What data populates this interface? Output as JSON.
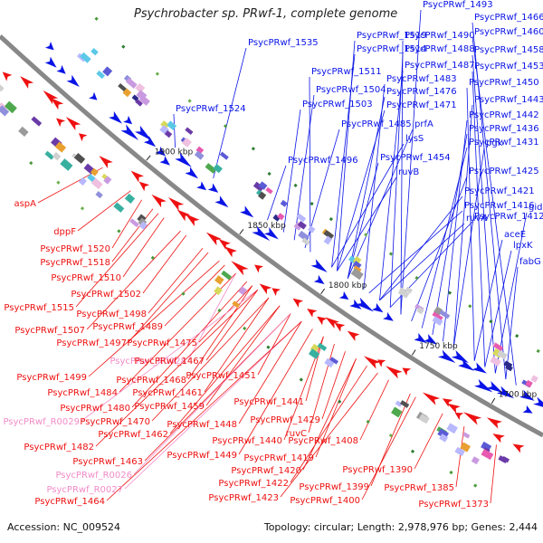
{
  "title": "Psychrobacter sp. PRwf-1, complete genome",
  "footer": {
    "accession": "Accession: NC_009524",
    "summary": "Topology: circular; Length: 2,978,976 bp; Genes: 2,444"
  },
  "colors": {
    "plus_strand": "#0a14e6",
    "minus_strand": "#ee1111",
    "rna_gene": "#f28cc8",
    "backbone": "#888888",
    "tick": "#222222"
  },
  "ticks": [
    "1900 kbp",
    "1850 kbp",
    "1800 kbp",
    "1750 kbp",
    "1700 kbp"
  ],
  "labels_plus": [
    "PsycPRwf_1493",
    "PsycPRwf_1466",
    "PsycPRwf_1460",
    "PsycPRwf_1519",
    "PsycPRwf_1490",
    "PsycPRwf_1535",
    "PsycPRwf_1514",
    "PsycPRwf_1488",
    "PsycPRwf_1458",
    "PsycPRwf_1487",
    "PsycPRwf_1453",
    "PsycPRwf_1511",
    "PsycPRwf_1483",
    "PsycPRwf_1450",
    "PsycPRwf_1504",
    "PsycPRwf_1476",
    "PsycPRwf_1443",
    "PsycPRwf_1524",
    "PsycPRwf_1503",
    "PsycPRwf_1471",
    "PsycPRwf_1442",
    "PsycPRwf_1485",
    "prfA",
    "PsycPRwf_1436",
    "lysS",
    "pgk",
    "PsycPRwf_1431",
    "PsycPRwf_1496",
    "PsycPRwf_1454",
    "ruvB",
    "PsycPRwf_1425",
    "PsycPRwf_1421",
    "ruvA",
    "PsycPRwf_1416",
    "PsycPRwf_1412",
    "gidB",
    "aceE",
    "lpxK",
    "fabG"
  ],
  "labels_minus": [
    "aspA",
    "dppF",
    "PsycPRwf_1520",
    "PsycPRwf_1518",
    "PsycPRwf_1510",
    "PsycPRwf_1502",
    "PsycPRwf_1515",
    "PsycPRwf_1498",
    "PsycPRwf_1507",
    "PsycPRwf_1489",
    "PsycPRwf_1497",
    "PsycPRwf_1475",
    "PsycPRwf_R0028",
    "PsycPRwf_1467",
    "PsycPRwf_1499",
    "PsycPRwf_1468",
    "PsycPRwf_1451",
    "PsycPRwf_1484",
    "PsycPRwf_1461",
    "PsycPRwf_1480",
    "PsycPRwf_1459",
    "PsycPRwf_1441",
    "PsycPRwf_R0029",
    "PsycPRwf_1470",
    "PsycPRwf_1448",
    "PsycPRwf_1429",
    "PsycPRwf_1462",
    "PsycPRwf_1440",
    "ruvC",
    "PsycPRwf_1482",
    "PsycPRwf_1449",
    "PsycPRwf_1419",
    "PsycPRwf_1408",
    "PsycPRwf_1463",
    "PsycPRwf_1420",
    "PsycPRwf_R0026",
    "PsycPRwf_1422",
    "PsycPRwf_1399",
    "PsycPRwf_1390",
    "PsycPRwf_R0027",
    "PsycPRwf_1423",
    "PsycPRwf_1400",
    "PsycPRwf_1385",
    "PsycPRwf_1464",
    "PsycPRwf_1373"
  ],
  "rna_labels": [
    "PsycPRwf_R0028",
    "PsycPRwf_R0029",
    "PsycPRwf_R0026",
    "PsycPRwf_R0027"
  ]
}
